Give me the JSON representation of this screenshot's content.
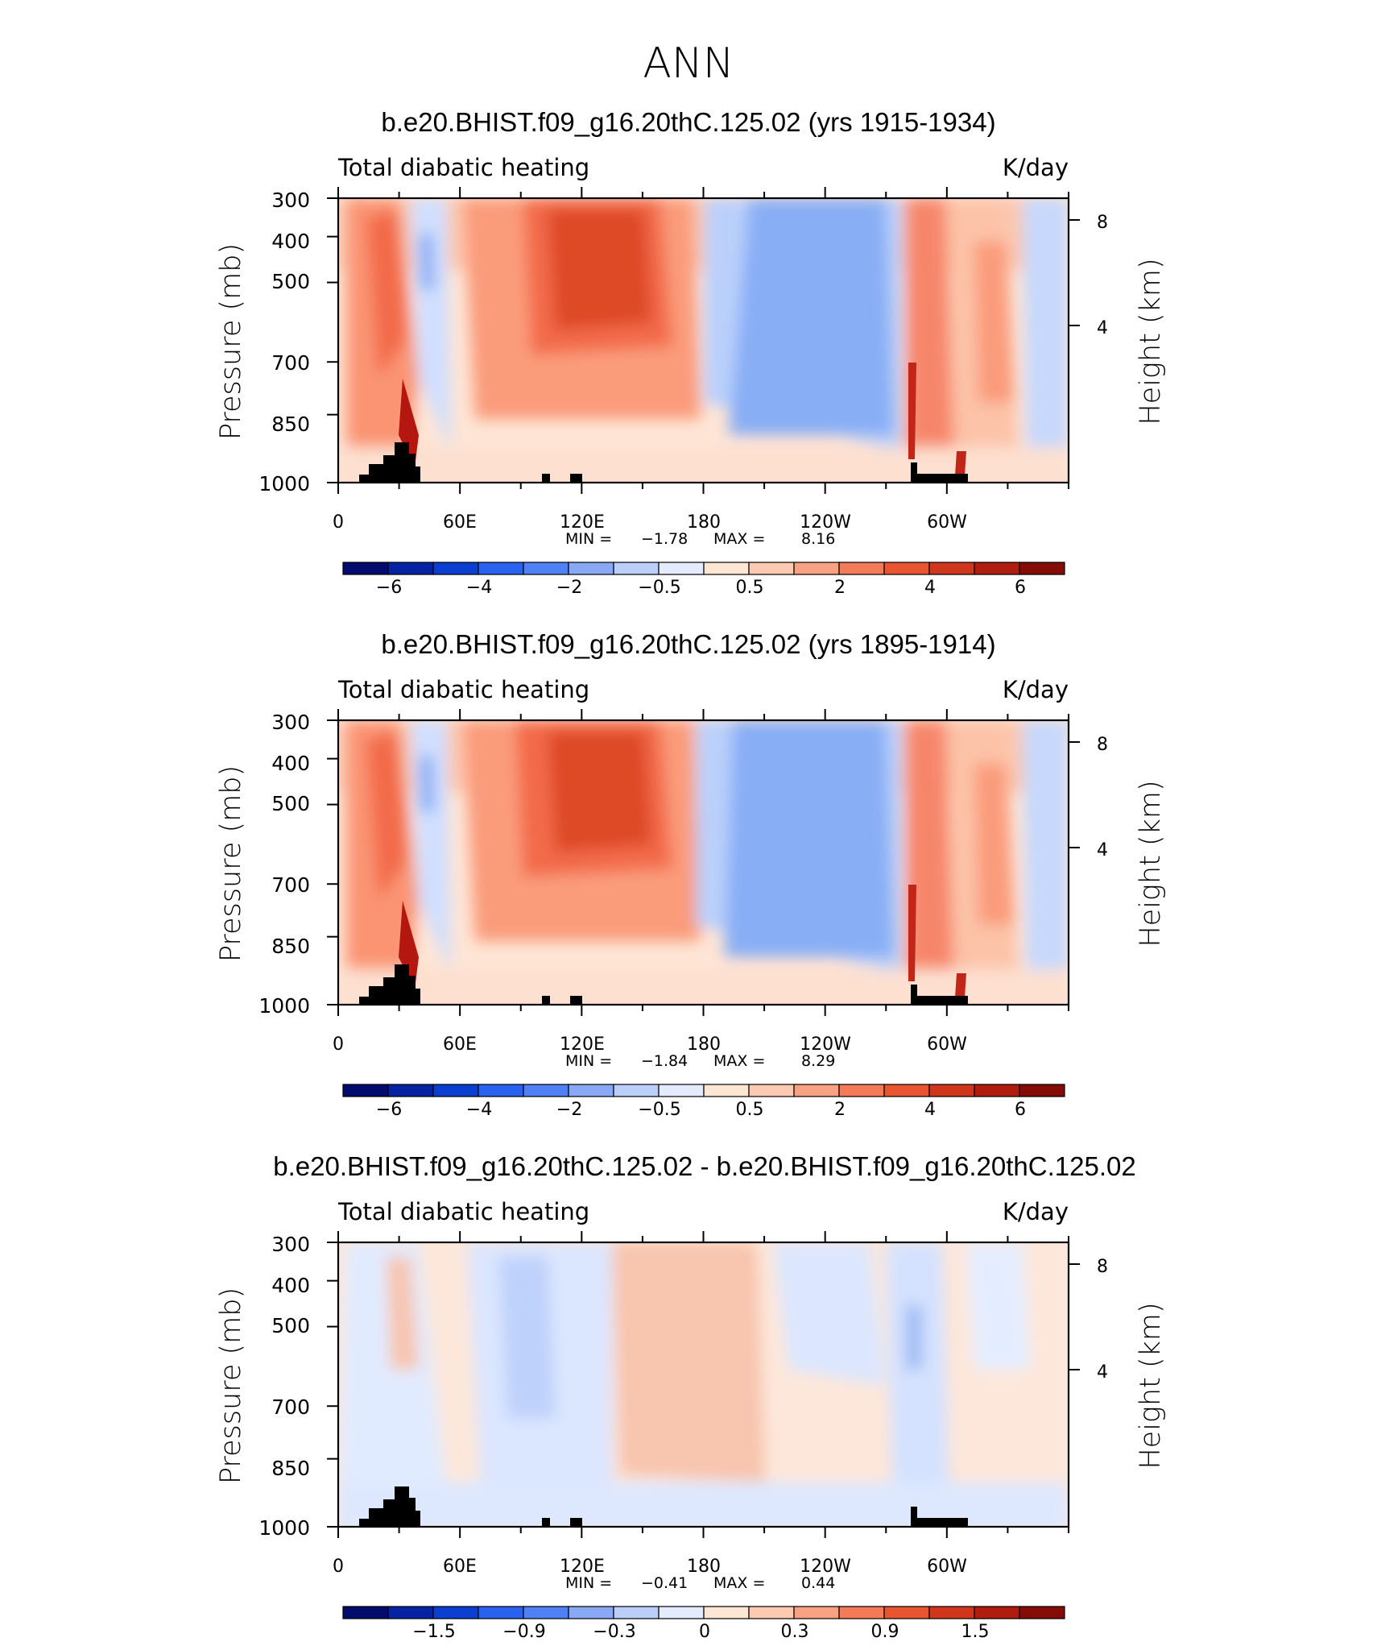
{
  "page_title": "ANN",
  "chart_data": [
    {
      "type": "contour",
      "title": "b.e20.BHIST.f09_g16.20thC.125.02 (yrs 1915-1934)",
      "left_label": "Total diabatic heating",
      "right_label": "K/day",
      "ylabel": "Pressure (mb)",
      "ylabel_right": "Height (km)",
      "y_ticks": [
        "300",
        "400",
        "500",
        "700",
        "850",
        "1000"
      ],
      "y_ticks_right": [
        "8",
        "4"
      ],
      "x_ticks": [
        "0",
        "60E",
        "120E",
        "180",
        "120W",
        "60W"
      ],
      "stats": {
        "min_label": "MIN =",
        "min": "−1.78",
        "max_label": "MAX =",
        "max": "8.16"
      },
      "colorbar_labels": [
        "−6",
        "−4",
        "−2",
        "−0.5",
        "0.5",
        "2",
        "4",
        "6"
      ],
      "levels": [
        -6,
        -5,
        -4,
        -3,
        -2,
        -1,
        -0.5,
        -0.25,
        0.25,
        0.5,
        1,
        2,
        3,
        4,
        5,
        6
      ],
      "field": [
        {
          "lon": 10,
          "p": 550,
          "value": 3
        },
        {
          "lon": 30,
          "p": 650,
          "value": 4
        },
        {
          "lon": 35,
          "p": 900,
          "value": 6
        },
        {
          "lon": 45,
          "p": 450,
          "value": -1
        },
        {
          "lon": 110,
          "p": 500,
          "value": 5
        },
        {
          "lon": 130,
          "p": 520,
          "value": 5
        },
        {
          "lon": 90,
          "p": 600,
          "value": 2
        },
        {
          "lon": 160,
          "p": 600,
          "value": 2
        },
        {
          "lon": 215,
          "p": 600,
          "value": -1
        },
        {
          "lon": 220,
          "p": 750,
          "value": -1
        },
        {
          "lon": 283,
          "p": 600,
          "value": 3
        },
        {
          "lon": 310,
          "p": 550,
          "value": 1
        },
        {
          "lon": 350,
          "p": 600,
          "value": -0.5
        }
      ]
    },
    {
      "type": "contour",
      "title": "b.e20.BHIST.f09_g16.20thC.125.02 (yrs 1895-1914)",
      "left_label": "Total diabatic heating",
      "right_label": "K/day",
      "ylabel": "Pressure (mb)",
      "ylabel_right": "Height (km)",
      "y_ticks": [
        "300",
        "400",
        "500",
        "700",
        "850",
        "1000"
      ],
      "y_ticks_right": [
        "8",
        "4"
      ],
      "x_ticks": [
        "0",
        "60E",
        "120E",
        "180",
        "120W",
        "60W"
      ],
      "stats": {
        "min_label": "MIN =",
        "min": "−1.84",
        "max_label": "MAX =",
        "max": "8.29"
      },
      "colorbar_labels": [
        "−6",
        "−4",
        "−2",
        "−0.5",
        "0.5",
        "2",
        "4",
        "6"
      ],
      "levels": [
        -6,
        -5,
        -4,
        -3,
        -2,
        -1,
        -0.5,
        -0.25,
        0.25,
        0.5,
        1,
        2,
        3,
        4,
        5,
        6
      ],
      "field": [
        {
          "lon": 10,
          "p": 550,
          "value": 3
        },
        {
          "lon": 30,
          "p": 650,
          "value": 4
        },
        {
          "lon": 35,
          "p": 900,
          "value": 6
        },
        {
          "lon": 45,
          "p": 450,
          "value": -1
        },
        {
          "lon": 110,
          "p": 500,
          "value": 5
        },
        {
          "lon": 130,
          "p": 520,
          "value": 5
        },
        {
          "lon": 90,
          "p": 600,
          "value": 2
        },
        {
          "lon": 160,
          "p": 600,
          "value": 2
        },
        {
          "lon": 210,
          "p": 600,
          "value": -1
        },
        {
          "lon": 220,
          "p": 750,
          "value": -1
        },
        {
          "lon": 283,
          "p": 600,
          "value": 3
        },
        {
          "lon": 310,
          "p": 550,
          "value": 1
        },
        {
          "lon": 350,
          "p": 600,
          "value": -0.5
        }
      ]
    },
    {
      "type": "contour",
      "title": "b.e20.BHIST.f09_g16.20thC.125.02 - b.e20.BHIST.f09_g16.20thC.125.02",
      "left_label": "Total diabatic heating",
      "right_label": "K/day",
      "ylabel": "Pressure (mb)",
      "ylabel_right": "Height (km)",
      "y_ticks": [
        "300",
        "400",
        "500",
        "700",
        "850",
        "1000"
      ],
      "y_ticks_right": [
        "8",
        "4"
      ],
      "x_ticks": [
        "0",
        "60E",
        "120E",
        "180",
        "120W",
        "60W"
      ],
      "stats": {
        "min_label": "MIN =",
        "min": "−0.41",
        "max_label": "MAX =",
        "max": "0.44"
      },
      "colorbar_labels": [
        "−1.5",
        "−0.9",
        "−0.3",
        "0",
        "0.3",
        "0.9",
        "1.5"
      ],
      "levels": [
        -1.8,
        -1.5,
        -1.2,
        -0.9,
        -0.6,
        -0.3,
        -0.1,
        0,
        0.1,
        0.3,
        0.6,
        0.9,
        1.2,
        1.5,
        1.8
      ],
      "field": [
        {
          "lon": 30,
          "p": 600,
          "value": -0.1
        },
        {
          "lon": 90,
          "p": 550,
          "value": -0.1
        },
        {
          "lon": 100,
          "p": 600,
          "value": -0.3
        },
        {
          "lon": 160,
          "p": 600,
          "value": 0.1
        },
        {
          "lon": 240,
          "p": 500,
          "value": -0.1
        },
        {
          "lon": 280,
          "p": 550,
          "value": -0.3
        },
        {
          "lon": 330,
          "p": 700,
          "value": 0.1
        }
      ]
    }
  ]
}
